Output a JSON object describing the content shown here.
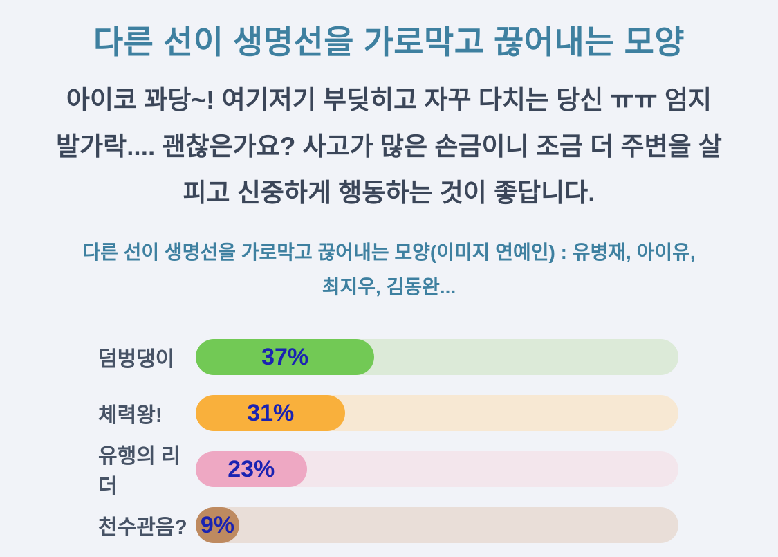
{
  "page": {
    "background_color": "#f1f3f8",
    "title": {
      "text": "다른 선이 생명선을 가로막고 끊어내는 모양",
      "color": "#3e80a0"
    },
    "description": {
      "color": "#3b4659",
      "lines": [
        "아이코 꽈당~! 여기저기 부딪히고 자꾸 다치는 당신 ㅠㅠ 엄지",
        "발가락.... 괜찮은가요? 사고가 많은 손금이니 조금 더 주변을 살",
        "피고 신중하게 행동하는 것이 좋답니다."
      ]
    },
    "subtitle": {
      "color": "#3e80a0",
      "lines": [
        "다른 선이 생명선을 가로막고 끊어내는 모양(이미지 연예인) : 유병재, 아이유,",
        "최지우, 김동완..."
      ]
    }
  },
  "chart_data": {
    "type": "bar",
    "orientation": "horizontal",
    "title": "",
    "xlabel": "",
    "ylabel": "",
    "xlim": [
      0,
      100
    ],
    "grid": false,
    "legend": false,
    "categories": [
      "덤벙댕이",
      "체력왕!",
      "유행의 리더",
      "천수관음?"
    ],
    "values": [
      37,
      31,
      23,
      9
    ],
    "value_labels": [
      "37%",
      "31%",
      "23%",
      "9%"
    ],
    "bar_colors": [
      "#72c955",
      "#f9b03c",
      "#eea8c3",
      "#be8a60"
    ],
    "track_colors": [
      "#dcead8",
      "#f7e8d3",
      "#f3e6ec",
      "#e9ded8"
    ],
    "value_label_color": "#1a23b2",
    "category_label_color": "#475366"
  }
}
